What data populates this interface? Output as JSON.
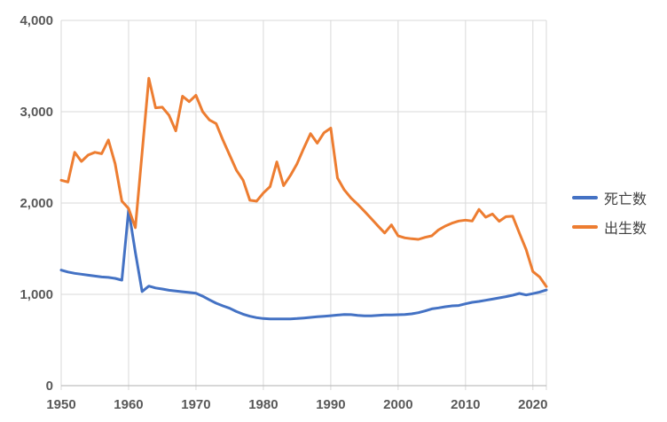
{
  "chart_data": {
    "type": "line",
    "title": "",
    "xlabel": "",
    "ylabel": "",
    "grid": true,
    "legend_position": "right",
    "ylim": [
      0,
      4000
    ],
    "xlim": [
      1950,
      2022
    ],
    "y_ticks": {
      "values": [
        0,
        1000,
        2000,
        3000,
        4000
      ],
      "labels": [
        "0",
        "1,000",
        "2,000",
        "3,000",
        "4,000"
      ]
    },
    "x_ticks": {
      "values": [
        1950,
        1960,
        1970,
        1980,
        1990,
        2000,
        2010,
        2020
      ],
      "labels": [
        "1950",
        "1960",
        "1970",
        "1980",
        "1990",
        "2000",
        "2010",
        "2020"
      ]
    },
    "x": [
      1950,
      1951,
      1952,
      1953,
      1954,
      1955,
      1956,
      1957,
      1958,
      1959,
      1960,
      1961,
      1962,
      1963,
      1964,
      1965,
      1966,
      1967,
      1968,
      1969,
      1970,
      1971,
      1972,
      1973,
      1974,
      1975,
      1976,
      1977,
      1978,
      1979,
      1980,
      1981,
      1982,
      1983,
      1984,
      1985,
      1986,
      1987,
      1988,
      1989,
      1990,
      1991,
      1992,
      1993,
      1994,
      1995,
      1996,
      1997,
      1998,
      1999,
      2000,
      2001,
      2002,
      2003,
      2004,
      2005,
      2006,
      2007,
      2008,
      2009,
      2010,
      2011,
      2012,
      2013,
      2014,
      2015,
      2016,
      2017,
      2018,
      2019,
      2020,
      2021,
      2022
    ],
    "series": [
      {
        "name": "死亡数",
        "color": "#4472C4",
        "values": [
          1265,
          1245,
          1230,
          1220,
          1210,
          1200,
          1190,
          1185,
          1175,
          1155,
          1925,
          1460,
          1030,
          1090,
          1070,
          1058,
          1045,
          1036,
          1028,
          1020,
          1013,
          980,
          940,
          903,
          874,
          848,
          812,
          783,
          760,
          745,
          735,
          731,
          730,
          730,
          731,
          735,
          741,
          748,
          754,
          760,
          766,
          773,
          780,
          778,
          770,
          764,
          764,
          770,
          774,
          774,
          777,
          780,
          786,
          799,
          818,
          841,
          851,
          864,
          874,
          878,
          896,
          913,
          922,
          935,
          948,
          961,
          975,
          990,
          1010,
          993,
          1008,
          1025,
          1048
        ]
      },
      {
        "name": "出生数",
        "color": "#ED7D31",
        "values": [
          2250,
          2230,
          2555,
          2455,
          2525,
          2555,
          2540,
          2690,
          2430,
          2020,
          1940,
          1730,
          2550,
          3366,
          3043,
          3050,
          2960,
          2790,
          3170,
          3110,
          3180,
          3000,
          2910,
          2870,
          2690,
          2525,
          2360,
          2250,
          2030,
          2020,
          2110,
          2180,
          2450,
          2190,
          2300,
          2430,
          2600,
          2760,
          2655,
          2770,
          2820,
          2275,
          2145,
          2055,
          1985,
          1910,
          1830,
          1750,
          1672,
          1760,
          1640,
          1618,
          1609,
          1602,
          1624,
          1641,
          1706,
          1748,
          1780,
          1803,
          1813,
          1803,
          1930,
          1845,
          1880,
          1800,
          1850,
          1855,
          1670,
          1490,
          1250,
          1190,
          1085
        ]
      }
    ]
  },
  "legend": {
    "items": [
      {
        "label": "死亡数",
        "color": "#4472C4"
      },
      {
        "label": "出生数",
        "color": "#ED7D31"
      }
    ]
  },
  "colors": {
    "background": "#FFFFFF",
    "grid": "#D9D9D9",
    "axis": "#BFBFBF",
    "tick_text": "#595959",
    "legend_text": "#404040"
  }
}
